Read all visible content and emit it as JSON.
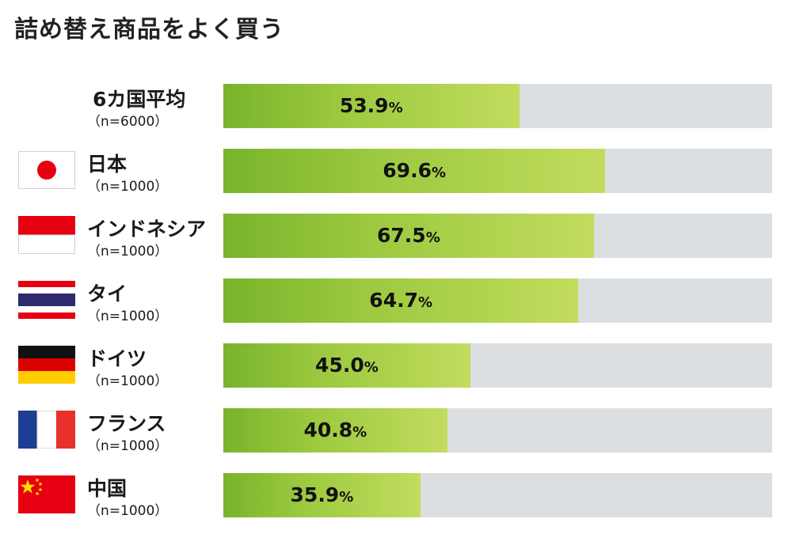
{
  "title": "詰め替え商品をよく買う",
  "chart_data": {
    "type": "bar",
    "orientation": "horizontal",
    "title": "詰め替え商品をよく買う",
    "xlim": [
      0,
      100
    ],
    "unit": "%",
    "categories": [
      {
        "name": "6カ国平均",
        "n": "（n=6000）",
        "value": 53.9,
        "value_label": "53.9",
        "flag": "none-icon"
      },
      {
        "name": "日本",
        "n": "（n=1000）",
        "value": 69.6,
        "value_label": "69.6",
        "flag": "japan-flag-icon"
      },
      {
        "name": "インドネシア",
        "n": "（n=1000）",
        "value": 67.5,
        "value_label": "67.5",
        "flag": "indonesia-flag-icon"
      },
      {
        "name": "タイ",
        "n": "（n=1000）",
        "value": 64.7,
        "value_label": "64.7",
        "flag": "thailand-flag-icon"
      },
      {
        "name": "ドイツ",
        "n": "（n=1000）",
        "value": 45.0,
        "value_label": "45.0",
        "flag": "germany-flag-icon"
      },
      {
        "name": "フランス",
        "n": "（n=1000）",
        "value": 40.8,
        "value_label": "40.8",
        "flag": "france-flag-icon"
      },
      {
        "name": "中国",
        "n": "（n=1000）",
        "value": 35.9,
        "value_label": "35.9",
        "flag": "china-flag-icon"
      }
    ]
  },
  "colors": {
    "bar_start": "#78b42c",
    "bar_end": "#c2dc5e",
    "track": "#dcdfe1"
  }
}
